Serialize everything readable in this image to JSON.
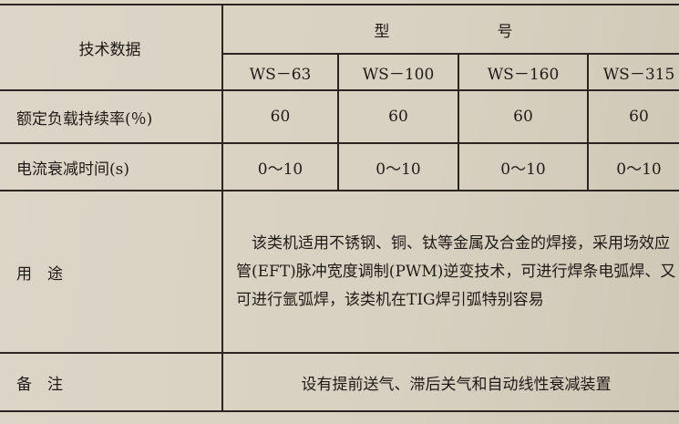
{
  "table": {
    "header_label": "技术数据",
    "model_group": "型　　号",
    "models": [
      "WS－63",
      "WS－100",
      "WS－160",
      "WS－315"
    ],
    "rows": [
      {
        "label": "额定负载持续率(％)",
        "values": [
          "60",
          "60",
          "60",
          "60"
        ]
      },
      {
        "label": "电流衰减时间(s)",
        "values": [
          "0～10",
          "0～10",
          "0～10",
          "0～10"
        ]
      }
    ],
    "usage_label": "用　途",
    "usage_text": "　该类机适用不锈钢、铜、钛等金属及合金的焊接，采用场效应管(EFT)脉冲宽度调制(PWM)逆变技术，可进行焊条电弧焊、又可进行氩弧焊，该类机在TIG焊引弧特别容易",
    "remarks_label": "备　注",
    "remarks_text": "设有提前送气、滞后关气和自动线性衰减装置"
  }
}
